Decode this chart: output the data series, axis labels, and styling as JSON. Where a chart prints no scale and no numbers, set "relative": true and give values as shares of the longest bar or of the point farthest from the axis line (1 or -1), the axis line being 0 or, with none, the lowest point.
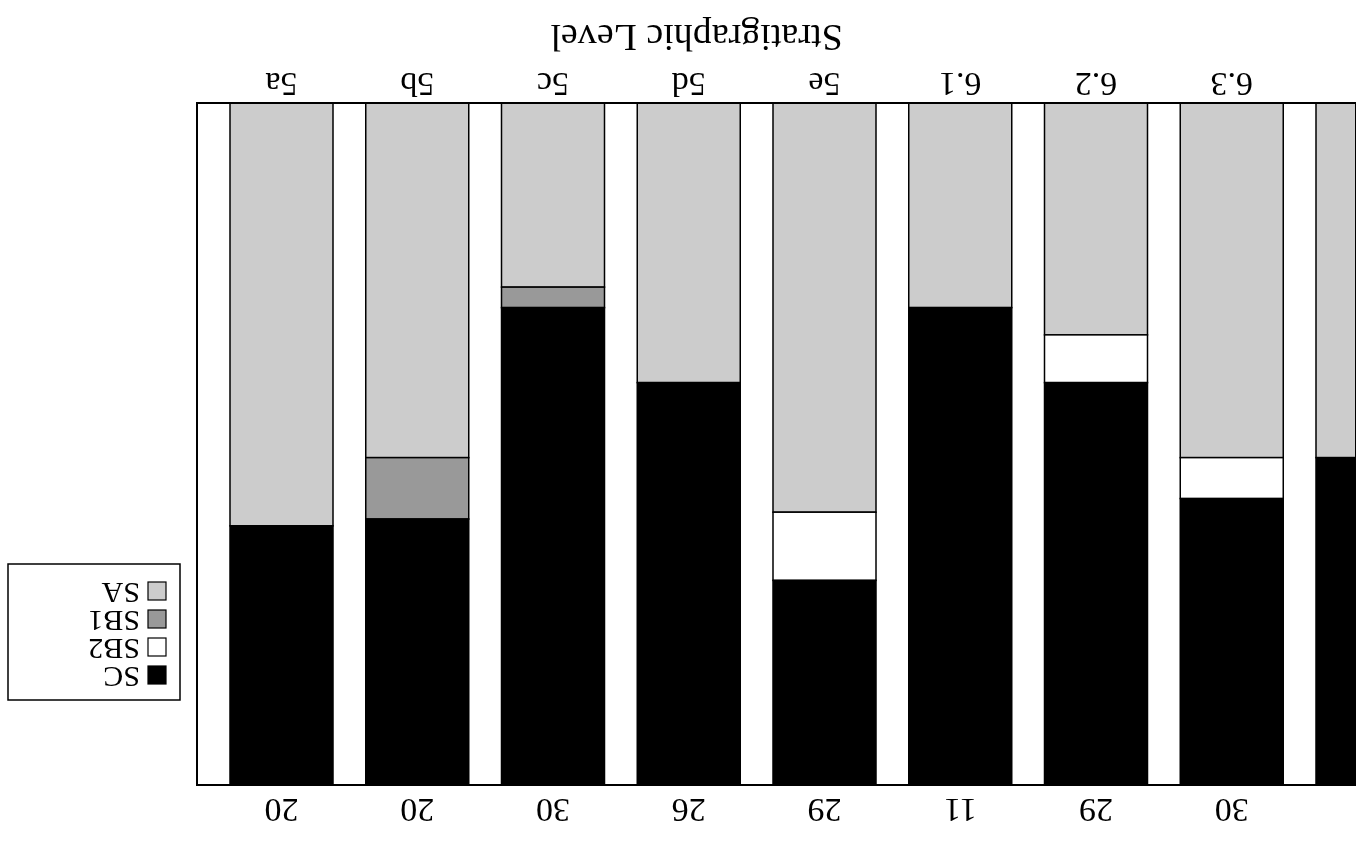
{
  "chart_data": {
    "type": "bar",
    "stacked": true,
    "relative": true,
    "xlabel": "Stratigraphic Level",
    "categories": [
      "5a",
      "5b",
      "5c",
      "5d",
      "5e",
      "6.1",
      "6.2",
      "6.3",
      null
    ],
    "series": [
      {
        "name": "SA",
        "color": "#cccccc",
        "values": [
          0.62,
          0.52,
          0.27,
          0.41,
          0.6,
          0.3,
          0.34,
          0.52,
          0.52
        ]
      },
      {
        "name": "SB1",
        "color": "#999999",
        "values": [
          0,
          0.09,
          0.03,
          0,
          0,
          0,
          0,
          0,
          0
        ]
      },
      {
        "name": "SB2",
        "color": "#ffffff",
        "values": [
          0,
          0,
          0,
          0,
          0.1,
          0,
          0.07,
          0.06,
          0
        ]
      },
      {
        "name": "SC",
        "color": "#000000",
        "values": [
          0.38,
          0.39,
          0.7,
          0.59,
          0.3,
          0.7,
          0.59,
          0.42,
          0.48
        ]
      }
    ],
    "annotations": [
      "20",
      "20",
      "30",
      "26",
      "29",
      "11",
      "29",
      "30"
    ],
    "legend": "bottom left"
  }
}
